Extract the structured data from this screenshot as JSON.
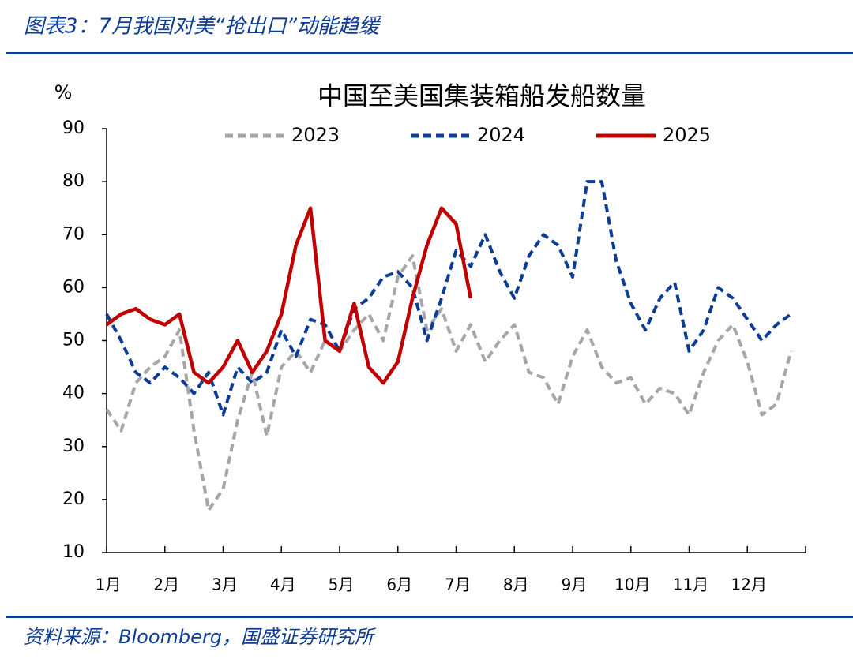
{
  "header": {
    "title": "图表3：7月我国对美“抢出口”动能趋缓"
  },
  "footer": {
    "source": "资料来源：Bloomberg，国盛证券研究所"
  },
  "chart_data": {
    "type": "line",
    "title": "中国至美国集装箱船发船数量",
    "y_label": "%",
    "categories": [
      "1月",
      null,
      null,
      null,
      "2月",
      null,
      null,
      null,
      "3月",
      null,
      null,
      null,
      "4月",
      null,
      null,
      null,
      "5月",
      null,
      null,
      null,
      "6月",
      null,
      null,
      null,
      "7月",
      null,
      null,
      null,
      "8月",
      null,
      null,
      null,
      "9月",
      null,
      null,
      null,
      "10月",
      null,
      null,
      null,
      "11月",
      null,
      null,
      null,
      "12月",
      null,
      null,
      null
    ],
    "series": [
      {
        "name": "2023",
        "color": "#a6a6a6",
        "style": "dashed",
        "values": [
          37,
          33,
          42,
          45,
          47,
          52,
          33,
          18,
          22,
          35,
          44,
          32,
          45,
          48,
          44,
          50,
          48,
          52,
          55,
          50,
          62,
          66,
          52,
          56,
          48,
          53,
          46,
          50,
          53,
          44,
          43,
          38,
          47,
          52,
          45,
          42,
          43,
          38,
          41,
          40,
          36,
          44,
          50,
          53,
          46,
          36,
          38,
          48
        ]
      },
      {
        "name": "2024",
        "color": "#0b3c96",
        "style": "dashed",
        "values": [
          55,
          50,
          44,
          42,
          45,
          43,
          40,
          44,
          36,
          45,
          42,
          44,
          52,
          47,
          54,
          53,
          48,
          56,
          58,
          62,
          63,
          60,
          50,
          58,
          67,
          64,
          70,
          63,
          58,
          66,
          70,
          68,
          62,
          80,
          80,
          65,
          57,
          52,
          58,
          61,
          48,
          52,
          60,
          58,
          54,
          50,
          53,
          55
        ]
      },
      {
        "name": "2025",
        "color": "#c00000",
        "style": "solid",
        "values": [
          53,
          55,
          56,
          54,
          53,
          55,
          44,
          42,
          45,
          50,
          44,
          48,
          55,
          68,
          75,
          50,
          48,
          57,
          45,
          42,
          46,
          58,
          68,
          75,
          72,
          58,
          null,
          null,
          null,
          null,
          null,
          null,
          null,
          null,
          null,
          null,
          null,
          null,
          null,
          null,
          null,
          null,
          null,
          null,
          null,
          null,
          null,
          null
        ]
      }
    ],
    "ylim": [
      10,
      90
    ],
    "yticks": [
      10,
      20,
      30,
      40,
      50,
      60,
      70,
      80,
      90
    ],
    "grid": false
  }
}
